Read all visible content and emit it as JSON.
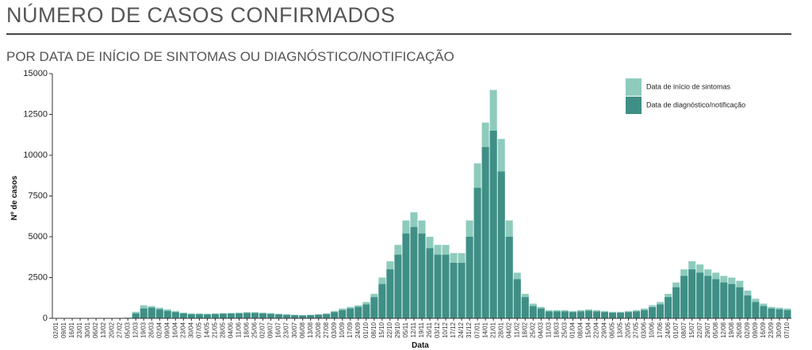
{
  "header": {
    "title": "NÚMERO DE CASOS CONFIRMADOS",
    "subtitle": "POR DATA DE INÍCIO DE SINTOMAS OU DIAGNÓSTICO/NOTIFICAÇÃO"
  },
  "chart_data": {
    "type": "bar",
    "x_label": "Data",
    "y_label": "Nº de casos",
    "categories": [
      "02/01",
      "09/01",
      "16/01",
      "23/01",
      "30/01",
      "06/02",
      "13/02",
      "20/02",
      "27/02",
      "05/03",
      "12/03",
      "19/03",
      "26/03",
      "02/04",
      "09/04",
      "16/04",
      "23/04",
      "30/04",
      "07/05",
      "14/05",
      "21/05",
      "28/05",
      "04/06",
      "11/06",
      "18/06",
      "25/06",
      "02/07",
      "09/07",
      "16/07",
      "23/07",
      "30/07",
      "06/08",
      "13/08",
      "20/08",
      "27/08",
      "03/09",
      "10/09",
      "17/09",
      "24/09",
      "01/10",
      "08/10",
      "15/10",
      "22/10",
      "29/10",
      "05/11",
      "12/11",
      "19/11",
      "26/11",
      "03/12",
      "10/12",
      "17/12",
      "24/12",
      "31/12",
      "07/01",
      "14/01",
      "21/01",
      "28/01",
      "04/02",
      "11/02",
      "18/02",
      "25/02",
      "04/03",
      "11/03",
      "18/03",
      "25/03",
      "01/04",
      "08/04",
      "15/04",
      "22/04",
      "29/04",
      "06/05",
      "13/05",
      "20/05",
      "27/05",
      "03/06",
      "10/06",
      "17/06",
      "24/06",
      "01/07",
      "08/07",
      "15/07",
      "22/07",
      "29/07",
      "05/08",
      "12/08",
      "19/08",
      "26/08",
      "02/09",
      "09/09",
      "16/09",
      "23/09",
      "30/09",
      "07/10"
    ],
    "series": [
      {
        "name": "Data de início de sintomas",
        "color": "#8ecbbd",
        "values": [
          0,
          0,
          0,
          0,
          0,
          0,
          0,
          0,
          0,
          50,
          400,
          800,
          750,
          650,
          550,
          450,
          350,
          300,
          300,
          280,
          300,
          320,
          330,
          350,
          380,
          380,
          350,
          320,
          280,
          250,
          220,
          200,
          220,
          250,
          300,
          450,
          600,
          700,
          800,
          1000,
          1500,
          2500,
          3500,
          4500,
          6000,
          6500,
          6000,
          5000,
          4500,
          4500,
          4000,
          4000,
          6000,
          9500,
          12000,
          14000,
          11000,
          6000,
          2800,
          1500,
          900,
          700,
          500,
          500,
          500,
          450,
          500,
          550,
          500,
          450,
          400,
          400,
          450,
          500,
          600,
          800,
          1000,
          1500,
          2200,
          3000,
          3500,
          3300,
          3000,
          2800,
          2600,
          2500,
          2300,
          1700,
          1200,
          900,
          700,
          650,
          600
        ]
      },
      {
        "name": "Data de diagnóstico/notificação",
        "color": "#3f8f86",
        "values": [
          0,
          0,
          0,
          0,
          0,
          0,
          0,
          0,
          0,
          0,
          300,
          600,
          650,
          550,
          450,
          380,
          300,
          250,
          250,
          240,
          260,
          280,
          290,
          300,
          320,
          320,
          300,
          270,
          240,
          210,
          190,
          170,
          190,
          220,
          260,
          380,
          500,
          600,
          700,
          850,
          1300,
          2100,
          3000,
          3900,
          5200,
          5600,
          5200,
          4300,
          3900,
          3900,
          3400,
          3400,
          5000,
          8000,
          10500,
          11500,
          9000,
          5000,
          2400,
          1300,
          750,
          600,
          420,
          420,
          420,
          380,
          420,
          460,
          420,
          380,
          340,
          340,
          380,
          420,
          500,
          680,
          850,
          1300,
          1900,
          2600,
          3000,
          2800,
          2600,
          2400,
          2200,
          2100,
          1900,
          1400,
          1000,
          750,
          600,
          550,
          500
        ]
      }
    ],
    "ylim": [
      0,
      15000
    ],
    "yticks": [
      0,
      2500,
      5000,
      7500,
      10000,
      12500,
      15000
    ],
    "grid": false,
    "legend": "upper right"
  }
}
